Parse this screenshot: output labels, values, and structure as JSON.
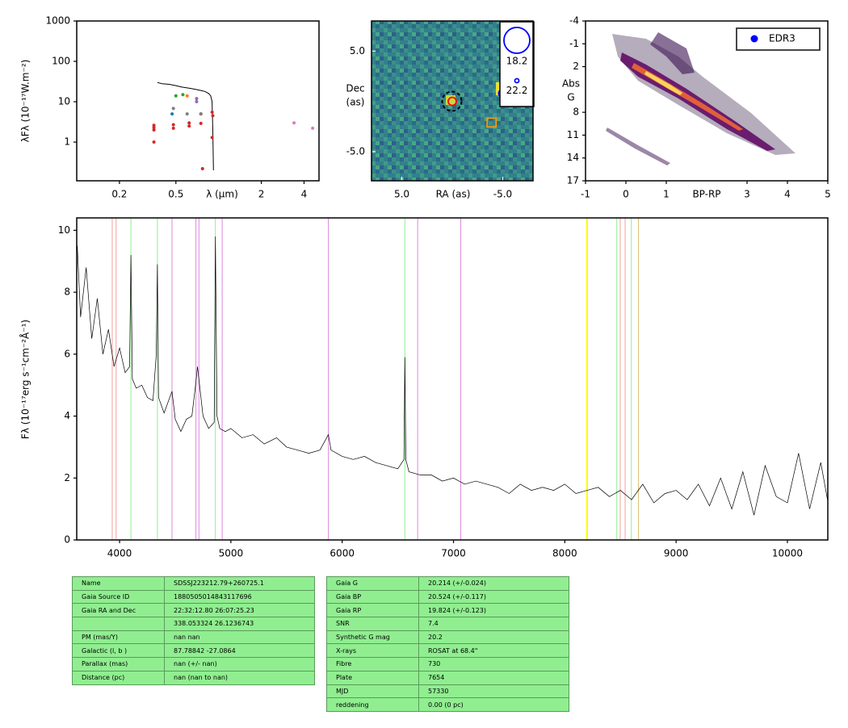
{
  "chart_data": [
    {
      "type": "scatter",
      "xlog": true,
      "ylog": true,
      "xlabel": "λ (μm)",
      "ylabel": "λFλ (10⁻¹⁷W.m⁻²)",
      "xlim": [
        0.1,
        5.1
      ],
      "ylim": [
        0.11,
        1000
      ],
      "xticks": [
        0.2,
        0.5,
        2,
        4
      ],
      "yticks": [
        1,
        10,
        100,
        1000
      ],
      "spectrum": {
        "color": "#000000",
        "x": [
          0.37,
          0.4,
          0.45,
          0.5,
          0.55,
          0.6,
          0.65,
          0.7,
          0.75,
          0.8,
          0.85,
          0.88,
          0.9,
          0.91,
          0.92
        ],
        "y": [
          30,
          28,
          27,
          25,
          23,
          22,
          21,
          20,
          19,
          18,
          16,
          14,
          10,
          2,
          0.2
        ]
      },
      "series": [
        {
          "color": "#d62728",
          "x": [
            0.35,
            0.35,
            0.35,
            0.35,
            0.48,
            0.48,
            0.62,
            0.62,
            0.75,
            0.75,
            0.77,
            0.9,
            0.91,
            0.9
          ],
          "y": [
            1,
            2,
            2.3,
            2.6,
            2.2,
            2.7,
            2.5,
            3,
            2.9,
            5,
            0.22,
            1.3,
            4.5,
            5.5
          ]
        },
        {
          "color": "#7f7f7f",
          "x": [
            0.48,
            0.6,
            0.75
          ],
          "y": [
            6.8,
            5,
            5
          ]
        },
        {
          "color": "#1f77b4",
          "x": [
            0.47
          ],
          "y": [
            5
          ]
        },
        {
          "color": "#2ca02c",
          "x": [
            0.5,
            0.56
          ],
          "y": [
            14,
            15
          ]
        },
        {
          "color": "#ff7f0e",
          "x": [
            0.6
          ],
          "y": [
            14
          ]
        },
        {
          "color": "#9467bd",
          "x": [
            0.7,
            0.7
          ],
          "y": [
            12,
            10
          ]
        },
        {
          "color": "#e377c2",
          "x": [
            3.4,
            4.6
          ],
          "y": [
            3,
            2.2
          ]
        }
      ]
    },
    {
      "type": "image",
      "xlabel": "RA (as)",
      "ylabel": [
        "Dec",
        "(as)"
      ],
      "xlim": [
        8,
        -8
      ],
      "ylim": [
        -7.9,
        8
      ],
      "xticks": [
        {
          "value": 5,
          "label": "5.0"
        },
        {
          "value": -5,
          "label": "-5.0"
        }
      ],
      "yticks": [
        {
          "value": 5,
          "label": "5.0"
        },
        {
          "value": -5,
          "label": "-5.0"
        }
      ],
      "sources": [
        {
          "x": 0,
          "y": 0,
          "shape": "circle",
          "color": "#ff0000"
        },
        {
          "x": -5,
          "y": 0.8,
          "shape": "circle",
          "color": "#0000ff"
        },
        {
          "x": -3.9,
          "y": -2.1,
          "shape": "square",
          "color": "#ff9900"
        }
      ],
      "size_legend": [
        18.2,
        22.2
      ],
      "legend": "upper right"
    },
    {
      "type": "density",
      "xlabel": "BP-RP",
      "ylabel": [
        "Abs",
        "G"
      ],
      "xlim": [
        -1,
        5
      ],
      "ylim": [
        17,
        -4
      ],
      "xticks": [
        -1,
        0,
        1,
        3,
        4,
        5
      ],
      "yticks": [
        -4,
        -1,
        2,
        8,
        11,
        14,
        17
      ],
      "series": [
        {
          "name": "EDR3",
          "color": "#0000ff"
        }
      ],
      "legend": "upper right"
    },
    {
      "type": "line",
      "ylabel": "Fλ (10⁻¹⁷erg s⁻¹cm⁻²Å⁻¹)",
      "xlim": [
        3615,
        10363
      ],
      "ylim": [
        0,
        10.4
      ],
      "xticks": [
        4000,
        5000,
        6000,
        7000,
        8000,
        9000,
        10000
      ],
      "yticks": [
        0,
        2,
        4,
        6,
        8,
        10
      ],
      "color": "#000000",
      "x": [
        3620,
        3650,
        3700,
        3750,
        3800,
        3850,
        3900,
        3950,
        4000,
        4050,
        4090,
        4102,
        4115,
        4150,
        4200,
        4250,
        4300,
        4330,
        4340,
        4350,
        4400,
        4471,
        4500,
        4550,
        4600,
        4650,
        4686,
        4700,
        4750,
        4800,
        4850,
        4861,
        4875,
        4900,
        4950,
        5000,
        5100,
        5200,
        5300,
        5411,
        5500,
        5600,
        5700,
        5800,
        5876,
        5900,
        6000,
        6100,
        6200,
        6300,
        6400,
        6500,
        6555,
        6563,
        6572,
        6600,
        6700,
        6800,
        6900,
        7000,
        7100,
        7200,
        7300,
        7400,
        7500,
        7600,
        7700,
        7800,
        7900,
        8000,
        8100,
        8200,
        8300,
        8400,
        8500,
        8600,
        8700,
        8800,
        8900,
        9000,
        9100,
        9200,
        9300,
        9400,
        9500,
        9600,
        9700,
        9800,
        9900,
        10000,
        10100,
        10200,
        10300,
        10360
      ],
      "y": [
        9.5,
        7.2,
        8.8,
        6.5,
        7.8,
        6.0,
        6.8,
        5.6,
        6.2,
        5.4,
        5.6,
        9.2,
        5.2,
        4.9,
        5.0,
        4.6,
        4.5,
        6.0,
        8.9,
        4.6,
        4.1,
        4.8,
        3.9,
        3.5,
        3.9,
        4.0,
        5.1,
        5.6,
        4.0,
        3.6,
        3.8,
        9.8,
        4.0,
        3.6,
        3.5,
        3.6,
        3.3,
        3.4,
        3.1,
        3.3,
        3.0,
        2.9,
        2.8,
        2.9,
        3.4,
        2.9,
        2.7,
        2.6,
        2.7,
        2.5,
        2.4,
        2.3,
        2.6,
        5.9,
        2.6,
        2.2,
        2.1,
        2.1,
        1.9,
        2.0,
        1.8,
        1.9,
        1.8,
        1.7,
        1.5,
        1.8,
        1.6,
        1.7,
        1.6,
        1.8,
        1.5,
        1.6,
        1.7,
        1.4,
        1.6,
        1.3,
        1.8,
        1.2,
        1.5,
        1.6,
        1.3,
        1.8,
        1.1,
        2.0,
        1.0,
        2.2,
        0.8,
        2.4,
        1.4,
        1.2,
        2.8,
        1.0,
        2.5,
        1.3
      ],
      "vlines": [
        {
          "x": 3934,
          "color": "#f4a0a0"
        },
        {
          "x": 3969,
          "color": "#f4a0a0"
        },
        {
          "x": 4102,
          "color": "#90ee90"
        },
        {
          "x": 4340,
          "color": "#90ee90"
        },
        {
          "x": 4861,
          "color": "#90ee90"
        },
        {
          "x": 6563,
          "color": "#90ee90"
        },
        {
          "x": 4471,
          "color": "#dd88dd"
        },
        {
          "x": 4686,
          "color": "#dd88dd"
        },
        {
          "x": 4713,
          "color": "#dd88dd"
        },
        {
          "x": 4922,
          "color": "#dd88dd"
        },
        {
          "x": 5876,
          "color": "#dd88dd"
        },
        {
          "x": 6678,
          "color": "#dd88dd"
        },
        {
          "x": 7065,
          "color": "#dd88dd"
        },
        {
          "x": 8200,
          "color": "#ffff00"
        },
        {
          "x": 8467,
          "color": "#90ee90"
        },
        {
          "x": 8498,
          "color": "#f4a0a0"
        },
        {
          "x": 8542,
          "color": "#f4a0a0"
        },
        {
          "x": 8598,
          "color": "#90ee90"
        },
        {
          "x": 8662,
          "color": "#d8c070"
        }
      ]
    }
  ],
  "tables": [
    {
      "rows": [
        [
          "Name",
          "SDSSJ223212.79+260725.1"
        ],
        [
          "Gaia Source ID",
          "1880505014843117696"
        ],
        [
          "Gaia RA and Dec",
          "22:32:12.80    26:07:25.23"
        ],
        [
          null,
          "338.053324    26.1236743"
        ],
        [
          "PM (mas/Y)",
          "nan    nan"
        ],
        [
          "Galactic (l, b )",
          "87.78842    -27.0864"
        ],
        [
          "Parallax (mas)",
          "nan (+/- nan)"
        ],
        [
          "Distance (pc)",
          "nan (nan to nan)"
        ]
      ]
    },
    {
      "rows": [
        [
          "Gaia G",
          "20.214 (+/-0.024)"
        ],
        [
          "Gaia BP",
          "20.524 (+/-0.117)"
        ],
        [
          "Gaia RP",
          "19.824 (+/-0.123)"
        ],
        [
          "SNR",
          "7.4"
        ],
        [
          "Synthetic G mag",
          "20.2"
        ],
        [
          "X-rays",
          "ROSAT at 68.4\""
        ],
        [
          "Fibre",
          "730"
        ],
        [
          "Plate",
          "7654"
        ],
        [
          "MJD",
          "57330"
        ],
        [
          "reddening",
          "0.00 (0 pc)"
        ]
      ]
    }
  ]
}
